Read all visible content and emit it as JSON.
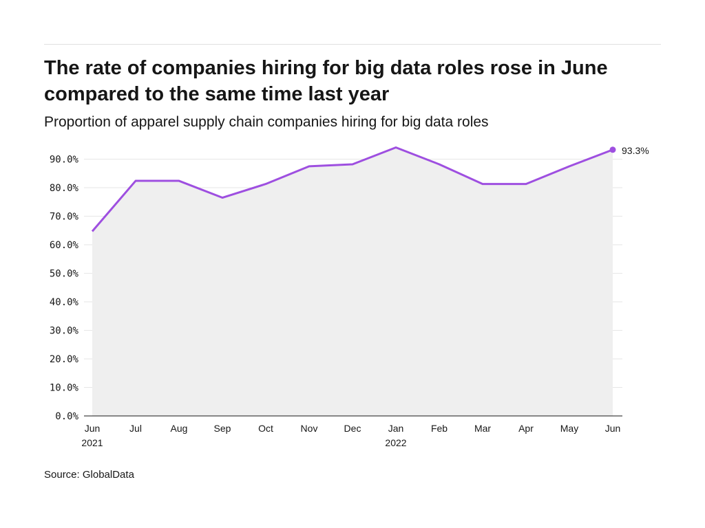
{
  "header": {
    "title": "The rate of companies hiring for big data roles rose in June compared to the same time last year",
    "subtitle": "Proportion of apparel supply chain companies hiring for big data roles"
  },
  "footer": {
    "source": "Source: GlobalData"
  },
  "chart_data": {
    "type": "area",
    "title": "The rate of companies hiring for big data roles rose in June compared to the same time last year",
    "subtitle": "Proportion of apparel supply chain companies hiring for big data roles",
    "xlabel": "",
    "ylabel": "",
    "categories": [
      "Jun 2021",
      "Jul 2021",
      "Aug 2021",
      "Sep 2021",
      "Oct 2021",
      "Nov 2021",
      "Dec 2021",
      "Jan 2022",
      "Feb 2022",
      "Mar 2022",
      "Apr 2022",
      "May 2022",
      "Jun 2022"
    ],
    "tick_labels": [
      {
        "month": "Jun",
        "year": "2021"
      },
      {
        "month": "Jul",
        "year": ""
      },
      {
        "month": "Aug",
        "year": ""
      },
      {
        "month": "Sep",
        "year": ""
      },
      {
        "month": "Oct",
        "year": ""
      },
      {
        "month": "Nov",
        "year": ""
      },
      {
        "month": "Dec",
        "year": ""
      },
      {
        "month": "Jan",
        "year": "2022"
      },
      {
        "month": "Feb",
        "year": ""
      },
      {
        "month": "Mar",
        "year": ""
      },
      {
        "month": "Apr",
        "year": ""
      },
      {
        "month": "May",
        "year": ""
      },
      {
        "month": "Jun",
        "year": ""
      }
    ],
    "values": [
      64.7,
      82.4,
      82.4,
      76.5,
      81.3,
      87.5,
      88.2,
      94.1,
      88.2,
      81.3,
      81.3,
      87.5,
      93.3
    ],
    "ylim": [
      0,
      100
    ],
    "yticks": [
      0,
      10,
      20,
      30,
      40,
      50,
      60,
      70,
      80,
      90
    ],
    "yticks_labels": [
      "0.0%",
      "10.0%",
      "20.0%",
      "30.0%",
      "40.0%",
      "50.0%",
      "60.0%",
      "70.0%",
      "80.0%",
      "90.0%"
    ],
    "end_label": "93.3%",
    "grid": true,
    "legend": "none",
    "colors": {
      "line": "#9e4fe0",
      "fill": "#efefef",
      "grid": "#e6e6e6",
      "axis": "#161616"
    }
  }
}
